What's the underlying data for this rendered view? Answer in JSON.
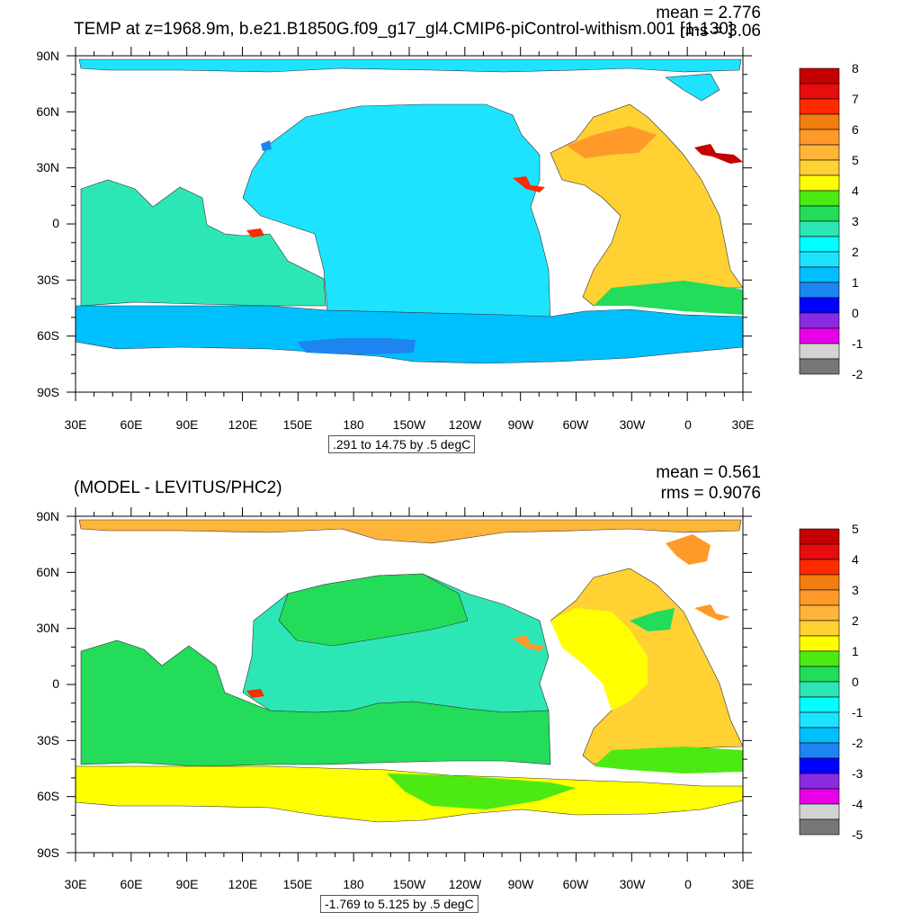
{
  "panels": [
    {
      "title": "TEMP at z=1968.9m, b.e21.B1850G.f09_g17_gl4.CMIP6-piControl-withism.001 [1-130]",
      "mean_text": "mean = 2.776",
      "rms_text": "rms = 3.06",
      "contour_info": ".291 to 14.75 by .5 degC",
      "colorbar_labels": [
        "8",
        "7",
        "6",
        "5",
        "4",
        "3",
        "2",
        "1",
        "0",
        "-1",
        "-2"
      ],
      "colorbar_colors": [
        "#c40000",
        "#e60d0d",
        "#ff2a00",
        "#f27d10",
        "#ff9a2a",
        "#ffb43a",
        "#ffd133",
        "#ffff00",
        "#4cea12",
        "#22dc5a",
        "#2de6b5",
        "#00ffff",
        "#1ee3ff",
        "#00bfff",
        "#1e84f0",
        "#0000ff",
        "#8a2be2",
        "#e800e8",
        "#d3d3d3",
        "#777777"
      ]
    },
    {
      "title": "(MODEL - LEVITUS/PHC2)",
      "mean_text": "mean = 0.561",
      "rms_text": "rms = 0.9076",
      "contour_info": "-1.769 to 5.125 by .5 degC",
      "colorbar_labels": [
        "5",
        "4",
        "3",
        "2",
        "1",
        "0",
        "-1",
        "-2",
        "-3",
        "-4",
        "-5"
      ],
      "colorbar_colors": [
        "#c40000",
        "#e60d0d",
        "#ff2a00",
        "#f27d10",
        "#ff9a2a",
        "#ffb43a",
        "#ffd133",
        "#ffff00",
        "#4cea12",
        "#22dc5a",
        "#2de6b5",
        "#00ffff",
        "#1ee3ff",
        "#00bfff",
        "#1e84f0",
        "#0000ff",
        "#8a2be2",
        "#e800e8",
        "#d3d3d3",
        "#777777"
      ]
    }
  ],
  "lat_labels": [
    "90N",
    "60N",
    "30N",
    "0",
    "30S",
    "60S",
    "90S"
  ],
  "lon_labels": [
    "30E",
    "60E",
    "90E",
    "120E",
    "150E",
    "180",
    "150W",
    "120W",
    "90W",
    "60W",
    "30W",
    "0",
    "30E"
  ],
  "colors": {
    "p1_pacific": "#1ee3ff",
    "p1_southern": "#00bfff",
    "p1_indian": "#2de6b5",
    "p1_atlantic": "#ffd133",
    "p1_arctic": "#1ee3ff",
    "p2_pacific": "#2de6b5",
    "p2_indopac": "#22dc5a",
    "p2_southern": "#ffff00",
    "p2_atlantic": "#ffd133",
    "p2_arctic": "#ffb43a"
  }
}
